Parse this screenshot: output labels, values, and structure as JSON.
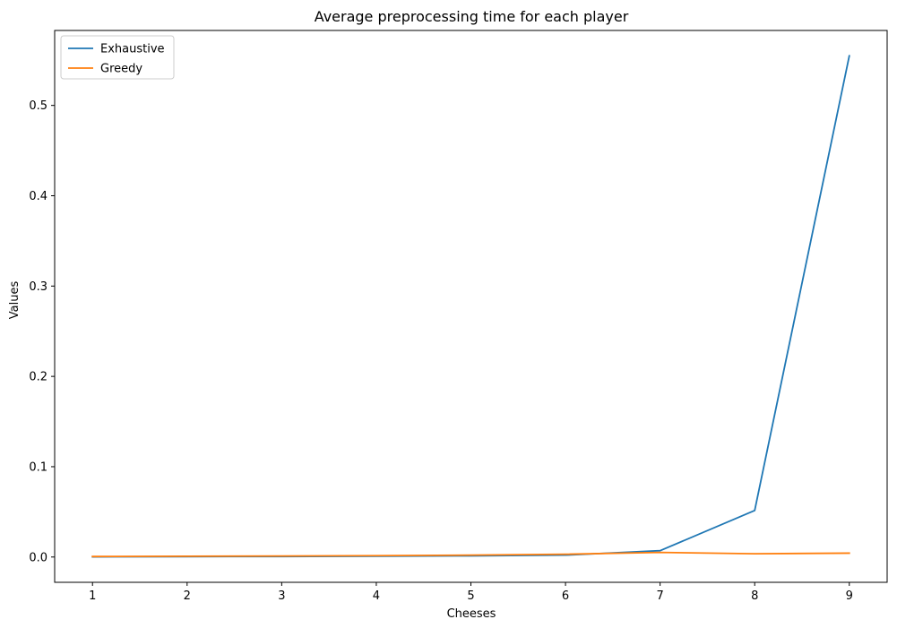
{
  "chart_data": {
    "type": "line",
    "title": "Average preprocessing time for each player",
    "xlabel": "Cheeses",
    "ylabel": "Values",
    "x": [
      1,
      2,
      3,
      4,
      5,
      6,
      7,
      8,
      9
    ],
    "xticks": [
      "1",
      "2",
      "3",
      "4",
      "5",
      "6",
      "7",
      "8",
      "9"
    ],
    "yticks": [
      "0.0",
      "0.1",
      "0.2",
      "0.3",
      "0.4",
      "0.5"
    ],
    "ytick_values": [
      0.0,
      0.1,
      0.2,
      0.3,
      0.4,
      0.5
    ],
    "xlim": [
      0.6,
      9.4
    ],
    "ylim": [
      -0.028,
      0.583
    ],
    "grid": false,
    "legend_position": "upper-left",
    "series": [
      {
        "name": "Exhaustive",
        "color": "#1f77b4",
        "values": [
          0.0002,
          0.0004,
          0.0006,
          0.0009,
          0.0013,
          0.0021,
          0.007,
          0.0515,
          0.5549
        ]
      },
      {
        "name": "Greedy",
        "color": "#ff7f0e",
        "values": [
          0.0006,
          0.0009,
          0.0011,
          0.0015,
          0.0021,
          0.0031,
          0.0051,
          0.0036,
          0.0043
        ]
      }
    ]
  }
}
